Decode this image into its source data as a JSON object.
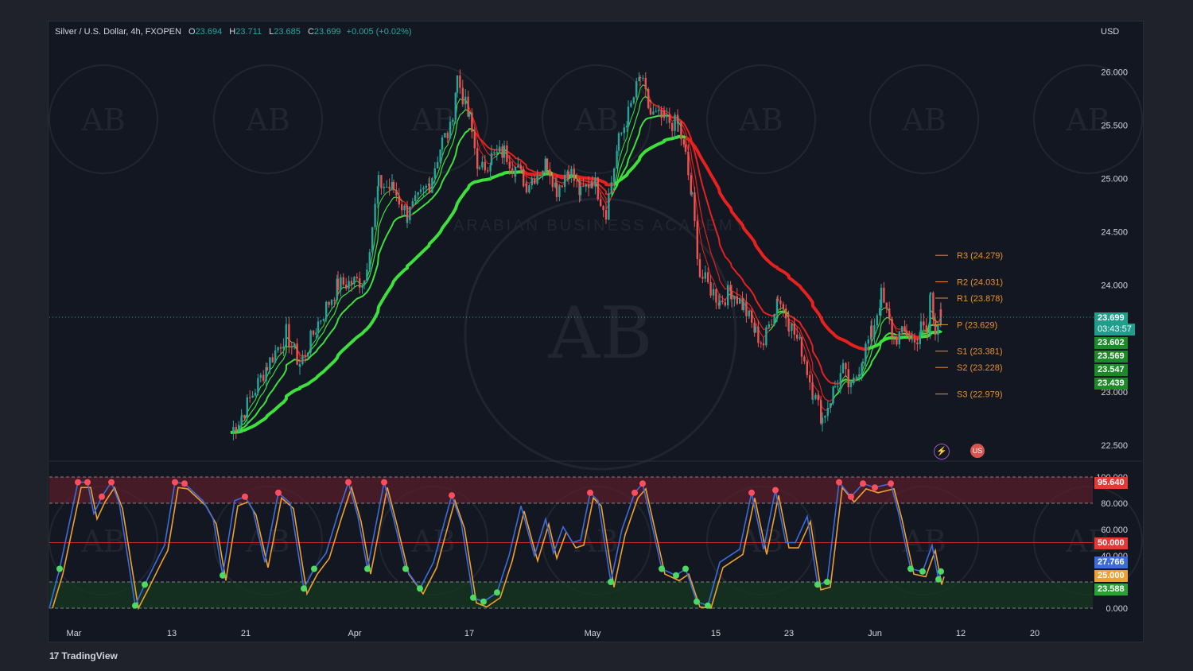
{
  "header": {
    "symbol": "Silver / U.S. Dollar, 4h, FXOPEN",
    "o_key": "O",
    "o": "23.694",
    "h_key": "H",
    "h": "23.711",
    "l_key": "L",
    "l": "23.685",
    "c_key": "C",
    "c": "23.699",
    "change": "+0.005 (+0.02%)",
    "currency": "USD"
  },
  "price_tags": {
    "last": "23.699",
    "countdown": "03:43:57",
    "ma1": "23.602",
    "ma2": "23.569",
    "ma3": "23.547",
    "ma4": "23.439",
    "osc_top": "95.640",
    "osc_mid": "50.000",
    "osc_k": "27.766",
    "osc_low": "25.000",
    "osc_d": "23.588"
  },
  "branding": {
    "logo_text": "TradingView",
    "watermark": "AB",
    "watermark_text": "ARABIAN BUSINESS ACADEMY"
  },
  "colors": {
    "up": "#26a69a",
    "down": "#ef5350",
    "ma_green": "#3ee03e",
    "ma_red": "#e8201e",
    "pivot": "#e8912a",
    "k_line": "#3d6cd8",
    "d_line": "#f0a030",
    "overbought_fill": "#5a1e2a",
    "oversold_fill": "#15351f"
  },
  "chart_data": {
    "type": "candlestick",
    "symbol": "Silver / U.S. Dollar",
    "timeframe": "4h",
    "currency": "USD",
    "price_axis": {
      "range": [
        22.35,
        26.3
      ],
      "ticks": [
        "26.000",
        "25.500",
        "25.000",
        "24.500",
        "24.000",
        "23.000",
        "22.500"
      ]
    },
    "time_axis": {
      "ticks": [
        "Mar",
        "13",
        "21",
        "Apr",
        "17",
        "May",
        "15",
        "23",
        "Jun",
        "12",
        "20"
      ]
    },
    "close_path": [
      [
        "Mar 20",
        22.62
      ],
      [
        "Mar 21",
        22.78
      ],
      [
        "Mar 23",
        23.25
      ],
      [
        "Mar 24",
        23.55
      ],
      [
        "Mar 27",
        23.25
      ],
      [
        "Mar 29",
        23.65
      ],
      [
        "Mar 31",
        24.0
      ],
      [
        "Apr 3",
        24.05
      ],
      [
        "Apr 4",
        24.95
      ],
      [
        "Apr 6",
        24.9
      ],
      [
        "Apr 7",
        24.65
      ],
      [
        "Apr 10",
        24.95
      ],
      [
        "Apr 11",
        25.35
      ],
      [
        "Apr 13",
        25.45
      ],
      [
        "Apr 14",
        25.95
      ],
      [
        "Apr 15",
        25.55
      ],
      [
        "Apr 17",
        25.05
      ],
      [
        "Apr 18",
        25.2
      ],
      [
        "Apr 19",
        25.25
      ],
      [
        "Apr 20",
        25.1
      ],
      [
        "Apr 21",
        24.95
      ],
      [
        "Apr 24",
        25.15
      ],
      [
        "Apr 25",
        24.9
      ],
      [
        "Apr 26",
        25.1
      ],
      [
        "Apr 27",
        24.85
      ],
      [
        "Apr 28",
        25.0
      ],
      [
        "May 1",
        24.7
      ],
      [
        "May 2",
        25.35
      ],
      [
        "May 3",
        25.6
      ],
      [
        "May 4",
        25.95
      ],
      [
        "May 5",
        25.6
      ],
      [
        "May 8",
        25.55
      ],
      [
        "May 10",
        25.5
      ],
      [
        "May 11",
        25.2
      ],
      [
        "May 12",
        24.8
      ],
      [
        "May 13",
        24.1
      ],
      [
        "May 15",
        23.85
      ],
      [
        "May 16",
        23.95
      ],
      [
        "May 17",
        23.8
      ],
      [
        "May 18",
        23.55
      ],
      [
        "May 19",
        23.45
      ],
      [
        "May 21",
        23.9
      ],
      [
        "May 22",
        23.65
      ],
      [
        "May 23",
        23.4
      ],
      [
        "May 24",
        23.0
      ],
      [
        "May 25",
        22.75
      ],
      [
        "May 26",
        23.05
      ],
      [
        "May 28",
        23.2
      ],
      [
        "May 29",
        23.0
      ],
      [
        "May 30",
        23.35
      ],
      [
        "May 31",
        23.55
      ],
      [
        "Jun 1",
        23.9
      ],
      [
        "Jun 2",
        23.5
      ],
      [
        "Jun 4",
        23.55
      ],
      [
        "Jun 5",
        23.45
      ],
      [
        "Jun 6",
        23.6
      ],
      [
        "Jun 7",
        23.55
      ],
      [
        "Jun 8",
        23.95
      ],
      [
        "Jun 9",
        23.6
      ],
      [
        "Jun 9 ",
        23.699
      ]
    ],
    "moving_averages": [
      {
        "value": 23.602
      },
      {
        "value": 23.569
      },
      {
        "value": 23.547
      },
      {
        "value": 23.439
      }
    ],
    "pivot_levels": [
      {
        "label": "R3 (24.279)",
        "value": 24.279
      },
      {
        "label": "R2 (24.031)",
        "value": 24.031
      },
      {
        "label": "R1 (23.878)",
        "value": 23.878
      },
      {
        "label": "P (23.629)",
        "value": 23.629
      },
      {
        "label": "S1 (23.381)",
        "value": 23.381
      },
      {
        "label": "S2 (23.228)",
        "value": 23.228
      },
      {
        "label": "S3 (22.979)",
        "value": 22.979
      }
    ],
    "oscillator": {
      "range": [
        0,
        100
      ],
      "ticks": [
        "100.000",
        "80.000",
        "60.000",
        "40.000",
        "0.000"
      ],
      "bands": [
        20,
        50,
        80
      ],
      "k_value": 27.766,
      "d_value": 23.588
    }
  }
}
